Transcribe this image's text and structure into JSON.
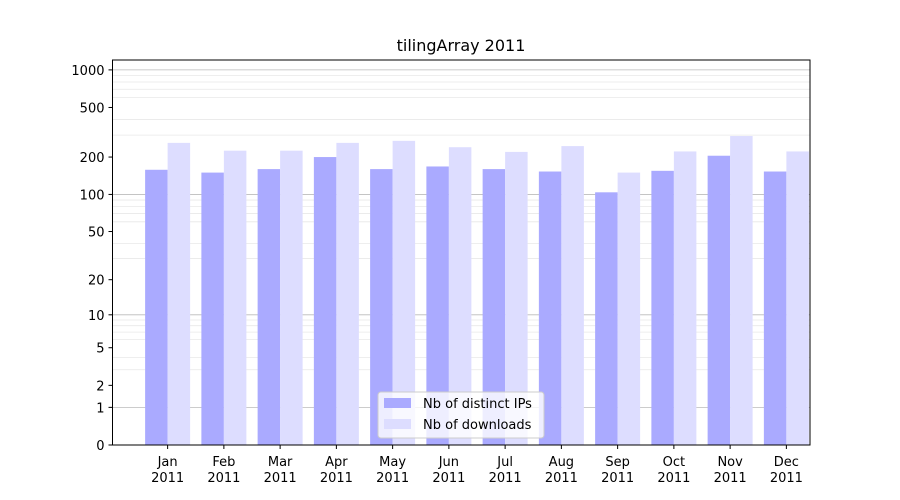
{
  "chart_data": {
    "type": "bar",
    "title": "tilingArray 2011",
    "xlabel": "",
    "ylabel": "",
    "yscale": "log1p",
    "ylim": [
      0,
      1200
    ],
    "yticks": [
      0,
      1,
      2,
      5,
      10,
      20,
      50,
      100,
      200,
      500,
      1000
    ],
    "grid": true,
    "legend_position": "bottom-center",
    "categories": [
      "Jan\n2011",
      "Feb\n2011",
      "Mar\n2011",
      "Apr\n2011",
      "May\n2011",
      "Jun\n2011",
      "Jul\n2011",
      "Aug\n2011",
      "Sep\n2011",
      "Oct\n2011",
      "Nov\n2011",
      "Dec\n2011"
    ],
    "series": [
      {
        "name": "Nb of distinct IPs",
        "color": "#aaaaff",
        "values": [
          158,
          150,
          160,
          200,
          160,
          168,
          160,
          153,
          104,
          155,
          205,
          153
        ]
      },
      {
        "name": "Nb of downloads",
        "color": "#ddddff",
        "values": [
          260,
          225,
          225,
          260,
          270,
          240,
          220,
          245,
          150,
          222,
          295,
          222
        ]
      }
    ]
  }
}
